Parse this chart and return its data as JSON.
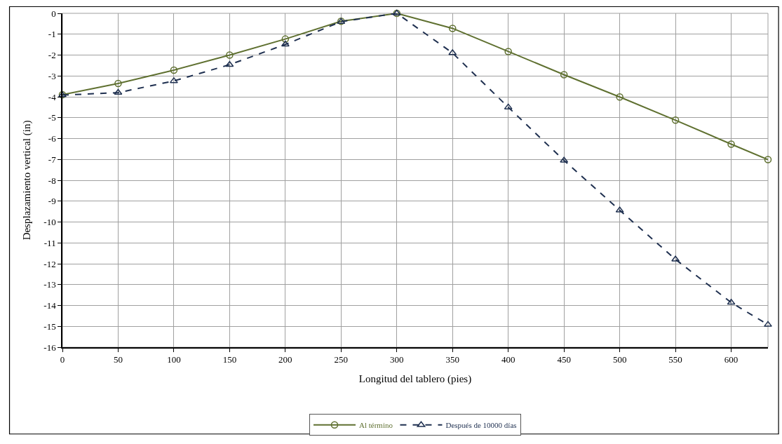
{
  "chart_data": {
    "type": "line",
    "xlabel": "Longitud del tablero (pies)",
    "ylabel": "Desplazamiento vertical (in)",
    "x": [
      0,
      50,
      100,
      150,
      200,
      250,
      300,
      350,
      400,
      450,
      500,
      550,
      600,
      633
    ],
    "series": [
      {
        "name": "Al término",
        "color": "#5f7030",
        "marker": "circle",
        "line_style": "solid",
        "values": [
          -3.9,
          -3.36,
          -2.72,
          -2.0,
          -1.23,
          -0.38,
          0,
          -0.72,
          -1.83,
          -2.94,
          -4.01,
          -5.12,
          -6.27,
          -7.01
        ]
      },
      {
        "name": "Después de 10000 días",
        "color": "#1f3050",
        "marker": "triangle",
        "line_style": "dashed",
        "values": [
          -3.92,
          -3.8,
          -3.24,
          -2.46,
          -1.49,
          -0.4,
          0,
          -1.9,
          -4.5,
          -7.05,
          -9.44,
          -11.79,
          -13.86,
          -14.92
        ]
      }
    ],
    "xlim": [
      0,
      633
    ],
    "xticks": [
      0,
      50,
      100,
      150,
      200,
      250,
      300,
      350,
      400,
      450,
      500,
      550,
      600
    ],
    "ylim": [
      -16,
      0
    ],
    "yticks": [
      0,
      -1,
      -2,
      -3,
      -4,
      -5,
      -6,
      -7,
      -8,
      -9,
      -10,
      -11,
      -12,
      -13,
      -14,
      -15,
      -16
    ],
    "grid": true,
    "legend": "bottom"
  }
}
